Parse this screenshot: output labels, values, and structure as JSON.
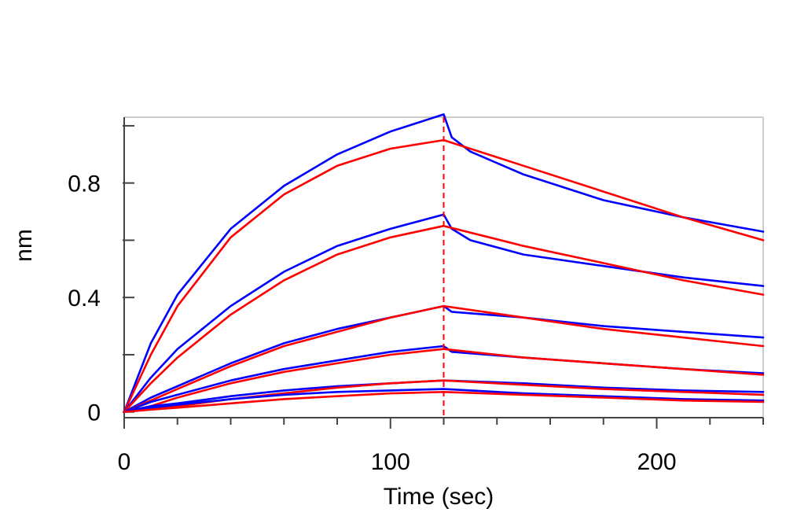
{
  "chart_data": {
    "type": "line",
    "title": "",
    "xlabel": "Time (sec)",
    "ylabel": "nm",
    "xlim": [
      0,
      240
    ],
    "ylim": [
      -0.02,
      1.03
    ],
    "xticks": [
      0,
      100,
      200
    ],
    "yticks": [
      0,
      0.4,
      0.8
    ],
    "xtick_labels": [
      "0",
      "100",
      "200"
    ],
    "ytick_labels": [
      "0",
      "0.4",
      "0.8"
    ],
    "grid": false,
    "legend": "none",
    "dissociation_start": 120,
    "colors": {
      "measured": "#0000ff",
      "fit": "#ff0000",
      "marker": "#ff0000",
      "frame": "#cccccc"
    },
    "series": [
      {
        "color": "#0000ff",
        "x": [
          0,
          10,
          20,
          40,
          60,
          80,
          100,
          120,
          123,
          130,
          150,
          180,
          210,
          240
        ],
        "values": [
          0,
          0.24,
          0.41,
          0.64,
          0.79,
          0.9,
          0.98,
          1.04,
          0.96,
          0.91,
          0.83,
          0.74,
          0.68,
          0.63
        ]
      },
      {
        "color": "#ff0000",
        "x": [
          0,
          10,
          20,
          40,
          60,
          80,
          100,
          120,
          150,
          180,
          210,
          240
        ],
        "values": [
          0,
          0.2,
          0.37,
          0.61,
          0.76,
          0.86,
          0.92,
          0.95,
          0.86,
          0.77,
          0.68,
          0.6
        ]
      },
      {
        "color": "#0000ff",
        "x": [
          0,
          10,
          20,
          40,
          60,
          80,
          100,
          120,
          123,
          130,
          150,
          180,
          210,
          240
        ],
        "values": [
          0,
          0.12,
          0.22,
          0.37,
          0.49,
          0.58,
          0.64,
          0.69,
          0.64,
          0.6,
          0.55,
          0.51,
          0.47,
          0.44
        ]
      },
      {
        "color": "#ff0000",
        "x": [
          0,
          10,
          20,
          40,
          60,
          80,
          100,
          120,
          150,
          180,
          210,
          240
        ],
        "values": [
          0,
          0.1,
          0.19,
          0.34,
          0.46,
          0.55,
          0.61,
          0.65,
          0.58,
          0.52,
          0.46,
          0.41
        ]
      },
      {
        "color": "#0000ff",
        "x": [
          0,
          10,
          20,
          40,
          60,
          80,
          100,
          120,
          123,
          150,
          180,
          210,
          240
        ],
        "values": [
          0,
          0.05,
          0.09,
          0.17,
          0.24,
          0.29,
          0.33,
          0.37,
          0.35,
          0.33,
          0.3,
          0.28,
          0.26
        ]
      },
      {
        "color": "#ff0000",
        "x": [
          0,
          10,
          20,
          40,
          60,
          80,
          100,
          120,
          150,
          180,
          210,
          240
        ],
        "values": [
          0,
          0.04,
          0.08,
          0.16,
          0.23,
          0.28,
          0.33,
          0.37,
          0.33,
          0.29,
          0.26,
          0.23
        ]
      },
      {
        "color": "#0000ff",
        "x": [
          0,
          10,
          20,
          40,
          60,
          80,
          100,
          120,
          123,
          150,
          180,
          210,
          240
        ],
        "values": [
          0,
          0.035,
          0.06,
          0.11,
          0.15,
          0.18,
          0.21,
          0.23,
          0.21,
          0.19,
          0.17,
          0.15,
          0.135
        ]
      },
      {
        "color": "#ff0000",
        "x": [
          0,
          10,
          20,
          40,
          60,
          80,
          100,
          120,
          150,
          180,
          210,
          240
        ],
        "values": [
          0,
          0.02,
          0.05,
          0.1,
          0.14,
          0.17,
          0.2,
          0.22,
          0.19,
          0.17,
          0.15,
          0.13
        ]
      },
      {
        "color": "#0000ff",
        "x": [
          0,
          10,
          20,
          40,
          60,
          80,
          100,
          120,
          150,
          180,
          210,
          240
        ],
        "values": [
          0,
          0.02,
          0.03,
          0.055,
          0.075,
          0.09,
          0.1,
          0.11,
          0.1,
          0.085,
          0.075,
          0.07
        ]
      },
      {
        "color": "#ff0000",
        "x": [
          0,
          10,
          20,
          40,
          60,
          80,
          100,
          120,
          150,
          180,
          210,
          240
        ],
        "values": [
          0,
          0.01,
          0.02,
          0.045,
          0.065,
          0.085,
          0.1,
          0.11,
          0.095,
          0.08,
          0.07,
          0.06
        ]
      },
      {
        "color": "#0000ff",
        "x": [
          0,
          10,
          20,
          40,
          60,
          80,
          100,
          120,
          150,
          180,
          210,
          240
        ],
        "values": [
          0,
          0.015,
          0.025,
          0.045,
          0.06,
          0.07,
          0.075,
          0.08,
          0.065,
          0.055,
          0.045,
          0.04
        ]
      },
      {
        "color": "#ff0000",
        "x": [
          0,
          10,
          20,
          40,
          60,
          80,
          100,
          120,
          150,
          180,
          210,
          240
        ],
        "values": [
          0,
          0.008,
          0.015,
          0.03,
          0.045,
          0.055,
          0.065,
          0.07,
          0.06,
          0.05,
          0.04,
          0.035
        ]
      }
    ]
  }
}
